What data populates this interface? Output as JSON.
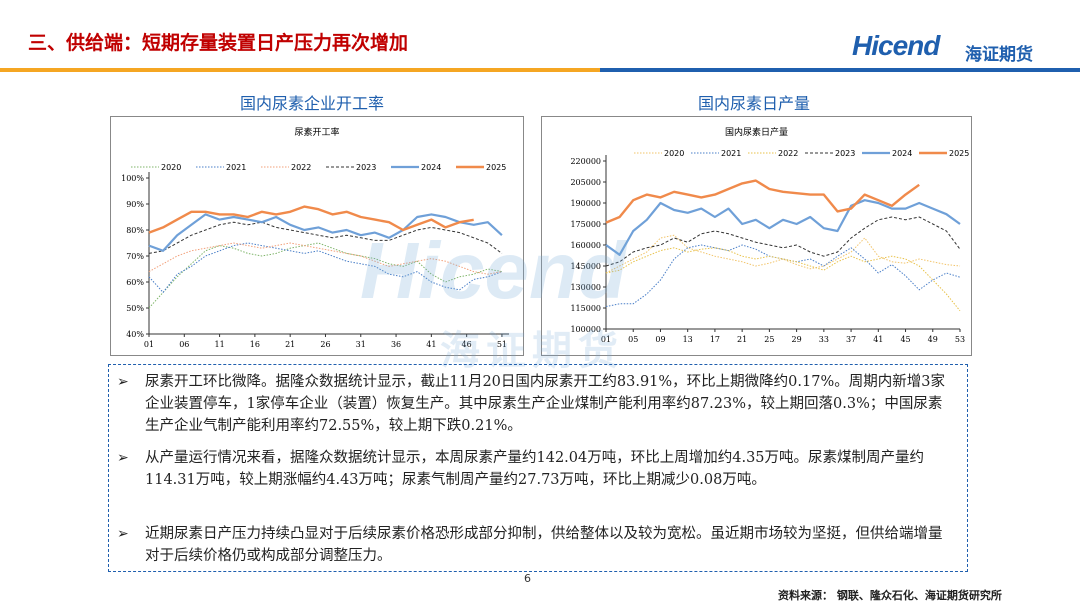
{
  "header": {
    "title": "三、供给端：短期存量装置日产压力再次增加",
    "logo_en": "Hicend",
    "logo_cn": "海证期货"
  },
  "colors": {
    "title": "#c00000",
    "brand": "#1f5fae",
    "bar_orange": "#f5a623",
    "bar_blue": "#1f5fae"
  },
  "subtitles": {
    "left": "国内尿素企业开工率",
    "right": "国内尿素日产量"
  },
  "watermark": {
    "en": "Hicend",
    "cn": "海证期货"
  },
  "chart_data": [
    {
      "type": "line",
      "title": "尿素开工率",
      "x_ticks": [
        "01",
        "06",
        "11",
        "16",
        "21",
        "26",
        "31",
        "36",
        "41",
        "46",
        "51"
      ],
      "y_ticks": [
        "40%",
        "50%",
        "60%",
        "70%",
        "80%",
        "90%",
        "100%"
      ],
      "ylim": [
        40,
        100
      ],
      "x_range": [
        1,
        52
      ],
      "legend_position": "top",
      "series": [
        {
          "name": "2020",
          "color": "#7fb56a",
          "style": "dotted",
          "width": 1,
          "x": [
            1,
            3,
            5,
            7,
            9,
            11,
            13,
            15,
            17,
            19,
            21,
            23,
            25,
            27,
            29,
            31,
            33,
            35,
            37,
            39,
            41,
            43,
            45,
            47,
            49,
            51
          ],
          "y": [
            50,
            56,
            62,
            67,
            72,
            74,
            73,
            71,
            70,
            71,
            73,
            74,
            75,
            73,
            71,
            70,
            69,
            67,
            66,
            68,
            63,
            60,
            62,
            63,
            65,
            64
          ]
        },
        {
          "name": "2021",
          "color": "#4a7fc8",
          "style": "dotted",
          "width": 1,
          "x": [
            1,
            3,
            5,
            7,
            9,
            11,
            13,
            15,
            17,
            19,
            21,
            23,
            25,
            27,
            29,
            31,
            33,
            35,
            37,
            39,
            41,
            43,
            45,
            47,
            49,
            51
          ],
          "y": [
            62,
            56,
            63,
            66,
            70,
            72,
            74,
            75,
            74,
            73,
            72,
            71,
            72,
            70,
            68,
            67,
            66,
            63,
            62,
            64,
            60,
            58,
            57,
            61,
            62,
            64
          ]
        },
        {
          "name": "2022",
          "color": "#f2a07a",
          "style": "dotted",
          "width": 1,
          "x": [
            1,
            3,
            5,
            7,
            9,
            11,
            13,
            15,
            17,
            19,
            21,
            23,
            25,
            27,
            29,
            31,
            33,
            35,
            37,
            39,
            41,
            43,
            45,
            47,
            49,
            51
          ],
          "y": [
            64,
            67,
            70,
            72,
            73,
            74,
            75,
            74,
            73,
            74,
            75,
            74,
            73,
            72,
            71,
            70,
            68,
            66,
            67,
            68,
            69,
            68,
            66,
            64,
            63,
            64
          ]
        },
        {
          "name": "2023",
          "color": "#333333",
          "style": "dashed",
          "width": 1,
          "x": [
            1,
            3,
            5,
            7,
            9,
            11,
            13,
            15,
            17,
            19,
            21,
            23,
            25,
            27,
            29,
            31,
            33,
            35,
            37,
            39,
            41,
            43,
            45,
            47,
            49,
            51
          ],
          "y": [
            71,
            72,
            75,
            78,
            80,
            82,
            83,
            82,
            83,
            81,
            80,
            79,
            78,
            77,
            78,
            77,
            76,
            76,
            78,
            80,
            81,
            80,
            79,
            77,
            75,
            71
          ]
        },
        {
          "name": "2024",
          "color": "#6fa0d8",
          "style": "solid",
          "width": 2.2,
          "x": [
            1,
            3,
            5,
            7,
            9,
            11,
            13,
            15,
            17,
            19,
            21,
            23,
            25,
            27,
            29,
            31,
            33,
            35,
            37,
            39,
            41,
            43,
            45,
            47,
            49,
            51
          ],
          "y": [
            74,
            72,
            78,
            82,
            86,
            84,
            85,
            84,
            83,
            85,
            82,
            80,
            81,
            79,
            80,
            78,
            79,
            77,
            80,
            85,
            86,
            85,
            83,
            82,
            83,
            78
          ]
        },
        {
          "name": "2025",
          "color": "#f08a4b",
          "style": "solid",
          "width": 2.4,
          "x": [
            1,
            3,
            5,
            7,
            9,
            11,
            13,
            15,
            17,
            19,
            21,
            23,
            25,
            27,
            29,
            31,
            33,
            35,
            37,
            39,
            41,
            43,
            45,
            47
          ],
          "y": [
            79,
            81,
            84,
            87,
            87,
            86,
            86,
            85,
            87,
            86,
            87,
            89,
            88,
            86,
            87,
            85,
            84,
            83,
            80,
            82,
            84,
            81,
            83,
            83.91
          ]
        }
      ]
    },
    {
      "type": "line",
      "title": "国内尿素日产量",
      "x_ticks": [
        "01",
        "05",
        "09",
        "13",
        "17",
        "21",
        "25",
        "29",
        "33",
        "37",
        "41",
        "45",
        "49",
        "53"
      ],
      "y_ticks": [
        "100000",
        "115000",
        "130000",
        "145000",
        "160000",
        "175000",
        "190000",
        "205000",
        "220000"
      ],
      "ylim": [
        100000,
        220000
      ],
      "x_range": [
        1,
        53
      ],
      "legend_position": "top",
      "series": [
        {
          "name": "2020",
          "color": "#f2c46a",
          "style": "dotted",
          "width": 1,
          "x": [
            1,
            3,
            5,
            7,
            9,
            11,
            13,
            15,
            17,
            19,
            21,
            23,
            25,
            27,
            29,
            31,
            33,
            35,
            37,
            39,
            41,
            43,
            45,
            47,
            49,
            51,
            53
          ],
          "y": [
            140000,
            145000,
            150000,
            155000,
            165000,
            167000,
            158000,
            155000,
            152000,
            150000,
            148000,
            145000,
            147000,
            150000,
            146000,
            143000,
            145000,
            150000,
            155000,
            165000,
            152000,
            148000,
            147000,
            150000,
            148000,
            146000,
            145000
          ]
        },
        {
          "name": "2021",
          "color": "#4a7fc8",
          "style": "dotted",
          "width": 1,
          "x": [
            1,
            3,
            5,
            7,
            9,
            11,
            13,
            15,
            17,
            19,
            21,
            23,
            25,
            27,
            29,
            31,
            33,
            35,
            37,
            39,
            41,
            43,
            45,
            47,
            49,
            51,
            53
          ],
          "y": [
            116000,
            118000,
            118000,
            125000,
            135000,
            150000,
            158000,
            160000,
            158000,
            156000,
            160000,
            157000,
            152000,
            150000,
            148000,
            150000,
            145000,
            152000,
            158000,
            150000,
            140000,
            146000,
            138000,
            128000,
            135000,
            140000,
            137000
          ]
        },
        {
          "name": "2022",
          "color": "#e8c24a",
          "style": "dotted",
          "width": 1,
          "x": [
            1,
            3,
            5,
            7,
            9,
            11,
            13,
            15,
            17,
            19,
            21,
            23,
            25,
            27,
            29,
            31,
            33,
            35,
            37,
            39,
            41,
            43,
            45,
            47,
            49,
            51,
            53
          ],
          "y": [
            140000,
            142000,
            148000,
            152000,
            156000,
            158000,
            155000,
            157000,
            158000,
            156000,
            152000,
            150000,
            152000,
            150000,
            148000,
            145000,
            142000,
            148000,
            152000,
            148000,
            150000,
            152000,
            150000,
            145000,
            135000,
            125000,
            113000
          ]
        },
        {
          "name": "2023",
          "color": "#333333",
          "style": "dashed",
          "width": 1,
          "x": [
            1,
            3,
            5,
            7,
            9,
            11,
            13,
            15,
            17,
            19,
            21,
            23,
            25,
            27,
            29,
            31,
            33,
            35,
            37,
            39,
            41,
            43,
            45,
            47,
            49,
            51,
            53
          ],
          "y": [
            145000,
            148000,
            155000,
            158000,
            160000,
            165000,
            162000,
            168000,
            170000,
            168000,
            165000,
            162000,
            160000,
            158000,
            160000,
            155000,
            152000,
            155000,
            165000,
            172000,
            178000,
            180000,
            178000,
            180000,
            175000,
            170000,
            157000
          ]
        },
        {
          "name": "2024",
          "color": "#6fa0d8",
          "style": "solid",
          "width": 2.2,
          "x": [
            1,
            3,
            5,
            7,
            9,
            11,
            13,
            15,
            17,
            19,
            21,
            23,
            25,
            27,
            29,
            31,
            33,
            35,
            37,
            39,
            41,
            43,
            45,
            47,
            49,
            51,
            53
          ],
          "y": [
            160000,
            153000,
            170000,
            178000,
            190000,
            185000,
            183000,
            186000,
            180000,
            186000,
            175000,
            178000,
            172000,
            178000,
            175000,
            180000,
            172000,
            170000,
            188000,
            192000,
            190000,
            186000,
            186000,
            190000,
            186000,
            182000,
            175000
          ]
        },
        {
          "name": "2025",
          "color": "#f08a4b",
          "style": "solid",
          "width": 2.4,
          "x": [
            1,
            3,
            5,
            7,
            9,
            11,
            13,
            15,
            17,
            19,
            21,
            23,
            25,
            27,
            29,
            31,
            33,
            35,
            37,
            39,
            41,
            43,
            45,
            47
          ],
          "y": [
            176000,
            180000,
            192000,
            196000,
            194000,
            198000,
            196000,
            194000,
            196000,
            200000,
            204000,
            206000,
            200000,
            198000,
            197000,
            196000,
            196000,
            184000,
            186000,
            196000,
            192000,
            188000,
            196000,
            203000
          ]
        }
      ]
    }
  ],
  "bullets": [
    "尿素开工环比微降。据隆众数据统计显示，截止11月20日国内尿素开工约83.91%，环比上期微降约0.17%。周期内新增3家企业装置停车，1家停车企业（装置）恢复生产。其中尿素生产企业煤制产能利用率约87.23%，较上期回落0.3%；中国尿素生产企业气制产能利用率约72.55%，较上期下跌0.21%。",
    "从产量运行情况来看，据隆众数据统计显示，本周尿素产量约142.04万吨，环比上周增加约4.35万吨。尿素煤制周产量约114.31万吨，较上期涨幅约4.43万吨；尿素气制周产量约27.73万吨，环比上期减少0.08万吨。",
    "近期尿素日产压力持续凸显对于后续尿素价格恐形成部分抑制，供给整体以及较为宽松。虽近期市场较为坚挺，但供给端增量对于后续价格仍或构成部分调整压力。"
  ],
  "bullet_marker": "➢",
  "footer": {
    "page": "6",
    "source": "资料来源： 钢联、隆众石化、海证期货研究所"
  }
}
